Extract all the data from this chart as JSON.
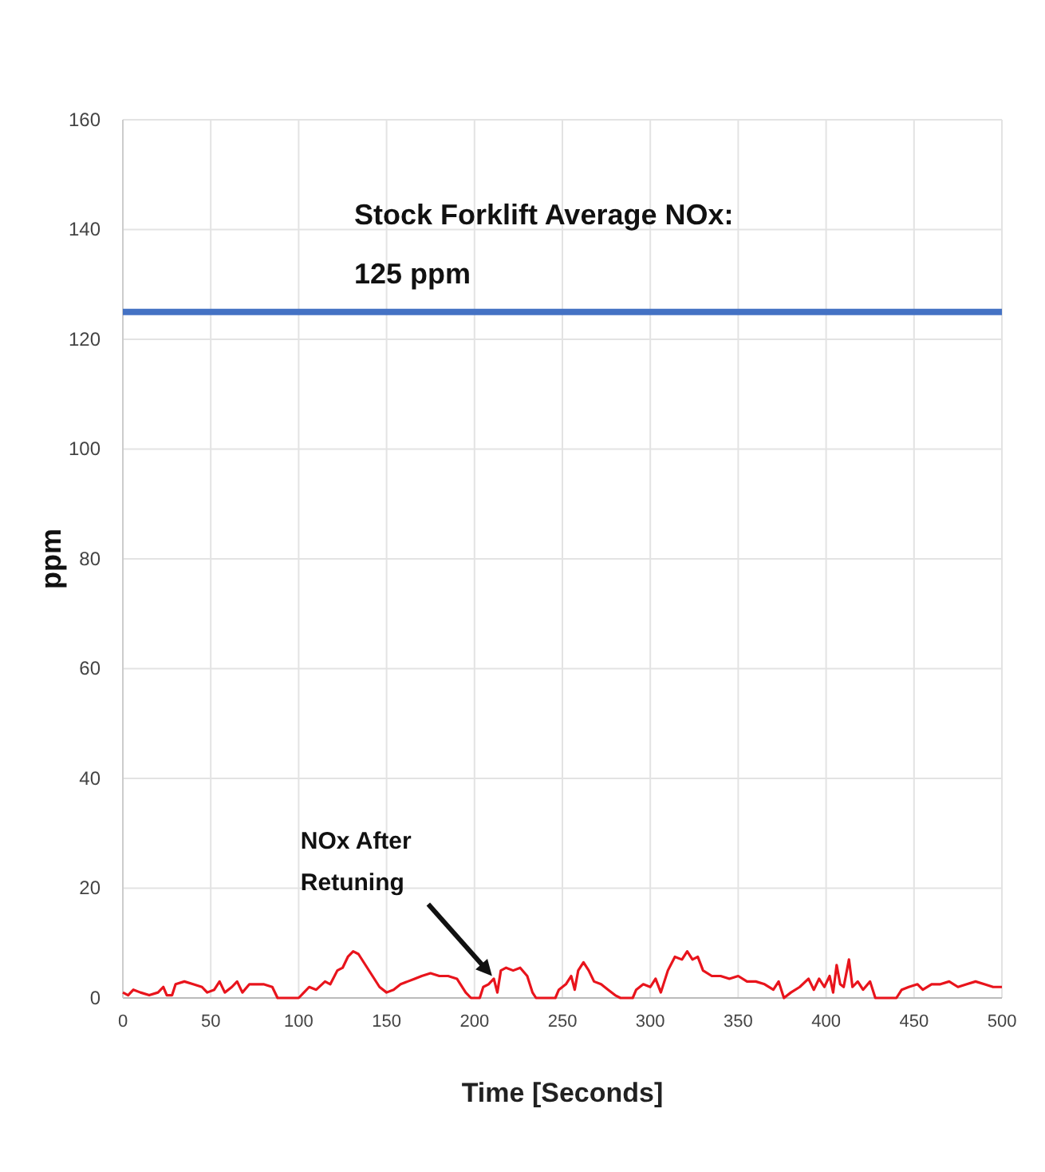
{
  "chart_data": {
    "type": "line",
    "xlabel": "Time [Seconds]",
    "ylabel": "ppm",
    "xlim": [
      0,
      500
    ],
    "xticks": [
      0,
      50,
      100,
      150,
      200,
      250,
      300,
      350,
      400,
      450,
      500
    ],
    "ylim": [
      0,
      160
    ],
    "yticks": [
      0,
      20,
      40,
      60,
      80,
      100,
      120,
      140,
      160
    ],
    "grid": true,
    "ref_lines": [
      {
        "axis": "y",
        "value": 125,
        "label": "Stock Forklift Average NOx: 125 ppm",
        "color": "#4472c4"
      }
    ],
    "annotations": [
      {
        "text": "NOx After Retuning",
        "x": 210,
        "y": 4
      }
    ],
    "series": [
      {
        "color": "#e8141c",
        "x": [
          0,
          3,
          6,
          10,
          15,
          20,
          23,
          25,
          28,
          30,
          35,
          40,
          45,
          48,
          52,
          55,
          58,
          62,
          65,
          68,
          72,
          75,
          80,
          85,
          88,
          100,
          103,
          106,
          110,
          115,
          118,
          122,
          125,
          128,
          131,
          134,
          138,
          142,
          146,
          150,
          154,
          158,
          162,
          166,
          170,
          175,
          180,
          185,
          190,
          195,
          198,
          203,
          205,
          208,
          211,
          213,
          215,
          218,
          222,
          226,
          230,
          233,
          235,
          246,
          248,
          252,
          255,
          257,
          259,
          262,
          265,
          268,
          272,
          276,
          280,
          283,
          290,
          292,
          296,
          300,
          303,
          306,
          310,
          314,
          318,
          321,
          324,
          327,
          330,
          335,
          340,
          345,
          350,
          355,
          360,
          365,
          370,
          373,
          376,
          380,
          385,
          390,
          393,
          396,
          399,
          402,
          404,
          406,
          408,
          410,
          413,
          415,
          418,
          421,
          425,
          428,
          440,
          443,
          447,
          452,
          455,
          460,
          465,
          470,
          475,
          480,
          485,
          490,
          495,
          500
        ],
        "values": [
          1,
          0.5,
          1.5,
          1,
          0.5,
          1,
          2,
          0.5,
          0.5,
          2.5,
          3,
          2.5,
          2,
          1,
          1.5,
          3,
          1,
          2,
          3,
          1,
          2.5,
          2.5,
          2.5,
          2,
          0,
          0,
          1,
          2,
          1.5,
          3,
          2.5,
          5,
          5.5,
          7.5,
          8.5,
          8,
          6,
          4,
          2,
          1,
          1.5,
          2.5,
          3,
          3.5,
          4,
          4.5,
          4,
          4,
          3.5,
          1,
          0,
          0,
          2,
          2.5,
          3.5,
          1,
          5,
          5.5,
          5,
          5.5,
          4,
          1,
          0,
          0,
          1.5,
          2.5,
          4,
          1.5,
          5,
          6.5,
          5,
          3,
          2.5,
          1.5,
          0.5,
          0,
          0,
          1.5,
          2.5,
          2,
          3.5,
          1,
          5,
          7.5,
          7,
          8.5,
          7,
          7.5,
          5,
          4,
          4,
          3.5,
          4,
          3,
          3,
          2.5,
          1.5,
          3,
          0,
          1,
          2,
          3.5,
          1.5,
          3.5,
          2,
          4,
          1,
          6,
          2.5,
          2,
          7,
          2,
          3,
          1.5,
          3,
          0,
          0,
          1.5,
          2,
          2.5,
          1.5,
          2.5,
          2.5,
          3,
          2,
          2.5,
          3,
          2.5,
          2,
          2
        ]
      }
    ]
  }
}
